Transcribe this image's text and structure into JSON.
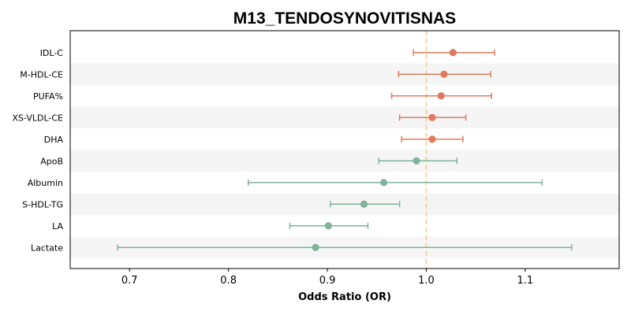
{
  "chart_data": {
    "type": "forest",
    "title": "M13_TENDOSYNOVITISNAS",
    "xlabel": "Odds Ratio (OR)",
    "ylabel": "",
    "xlim": [
      0.64,
      1.195
    ],
    "xticks": [
      0.7,
      0.8,
      0.9,
      1.0,
      1.1
    ],
    "xtick_labels": [
      "0.7",
      "0.8",
      "0.9",
      "1.0",
      "1.1"
    ],
    "reference_line": 1.0,
    "grid": false,
    "row_shading": "alternating",
    "colors": {
      "positive": "#E07A5F",
      "negative": "#81B29A",
      "reference": "#F2CC8F",
      "band": "#F5F5F5"
    },
    "rows": [
      {
        "label": "IDL-C",
        "or": 1.027,
        "lower": 0.987,
        "upper": 1.069
      },
      {
        "label": "M-HDL-CE",
        "or": 1.018,
        "lower": 0.972,
        "upper": 1.065
      },
      {
        "label": "PUFA%",
        "or": 1.015,
        "lower": 0.965,
        "upper": 1.066
      },
      {
        "label": "XS-VLDL-CE",
        "or": 1.006,
        "lower": 0.973,
        "upper": 1.04
      },
      {
        "label": "DHA",
        "or": 1.006,
        "lower": 0.975,
        "upper": 1.037
      },
      {
        "label": "ApoB",
        "or": 0.99,
        "lower": 0.952,
        "upper": 1.031
      },
      {
        "label": "Albumin",
        "or": 0.957,
        "lower": 0.82,
        "upper": 1.117
      },
      {
        "label": "S-HDL-TG",
        "or": 0.937,
        "lower": 0.903,
        "upper": 0.973
      },
      {
        "label": "LA",
        "or": 0.901,
        "lower": 0.862,
        "upper": 0.941
      },
      {
        "label": "Lactate",
        "or": 0.888,
        "lower": 0.688,
        "upper": 1.147
      }
    ]
  }
}
